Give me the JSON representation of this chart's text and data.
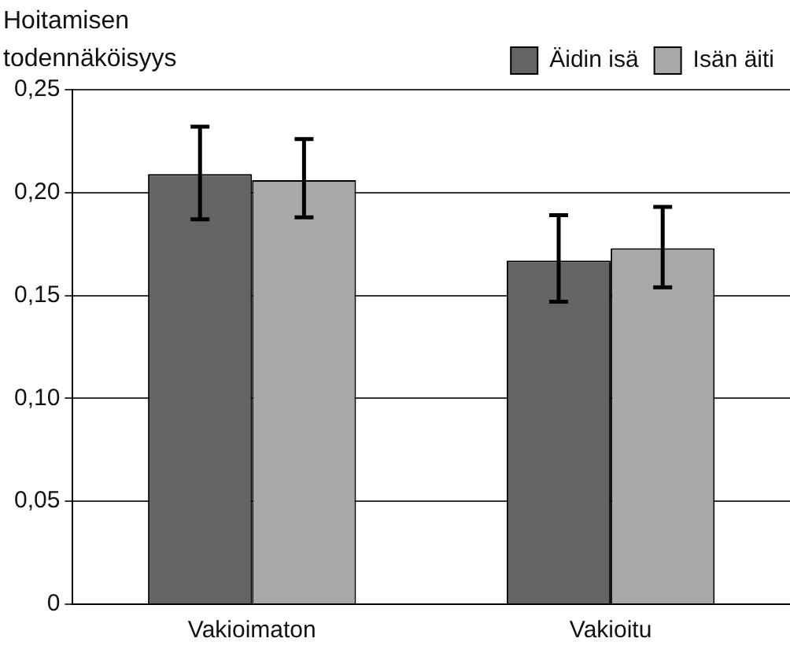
{
  "chart_data": {
    "type": "bar",
    "ylabel": "Hoitamisen todennäköisyys",
    "categories": [
      "Vakioimaton",
      "Vakioitu"
    ],
    "series": [
      {
        "name": "Äidin isä",
        "color": "#636466",
        "values": [
          0.209,
          0.167
        ],
        "errors": [
          [
            0.187,
            0.232
          ],
          [
            0.147,
            0.189
          ]
        ]
      },
      {
        "name": "Isän äiti",
        "color": "#a7a8aa",
        "values": [
          0.206,
          0.173
        ],
        "errors": [
          [
            0.188,
            0.226
          ],
          [
            0.154,
            0.193
          ]
        ]
      }
    ],
    "ylim": [
      0,
      0.25
    ],
    "yticks": [
      0,
      {
        "value": 0.05,
        "label": "0,05"
      },
      {
        "value": 0.1,
        "label": "0,10"
      },
      {
        "value": 0.15,
        "label": "0,15"
      },
      {
        "value": 0.2,
        "label": "0,20"
      },
      {
        "value": 0.25,
        "label": "0,25"
      }
    ],
    "grid": "y",
    "legend": "top right"
  }
}
